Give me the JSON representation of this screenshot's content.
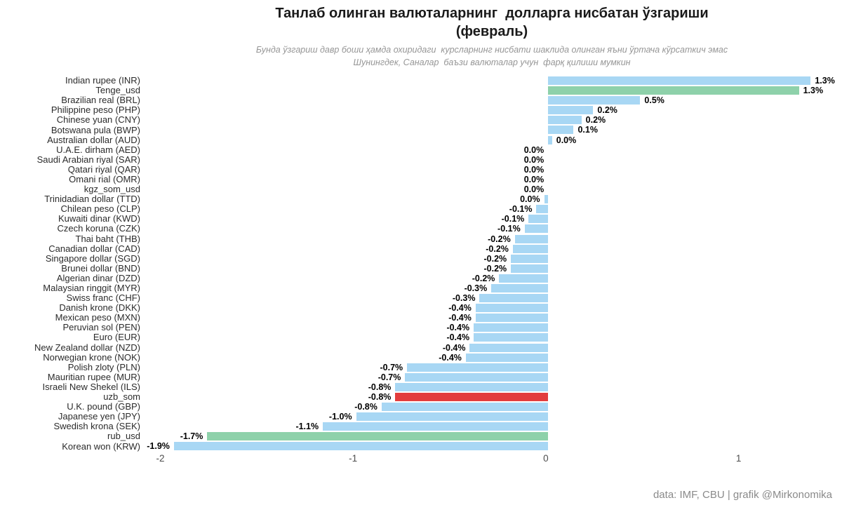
{
  "title": {
    "line1": "Танлаб олинган валюталарнинг  долларга нисбатан ўзгариши",
    "line2": "(февраль)"
  },
  "subtitle": {
    "line1": "Бунда ўзгариш давр боши ҳамда охиридаги  курсларнинг нисбати шаклида олинган яъни ўртача кўрсаткич эмас",
    "line2": "Шунингдек, Саналар  баъзи валюталар учун  фарқ қилиши мумкин"
  },
  "footer": "data: IMF, CBU | grafik @Mirkonomika",
  "chart_data": {
    "type": "bar",
    "orientation": "horizontal",
    "title": "Танлаб олинган валюталарнинг  долларга нисбатан ўзгариши (февраль)",
    "xlabel": "",
    "ylabel": "",
    "grid": false,
    "legend": false,
    "xlim": [
      -2.06,
      1.5
    ],
    "x_ticks": [
      -2,
      -1,
      0,
      1
    ],
    "x_tick_labels": [
      "-2",
      "-1",
      "0",
      "1"
    ],
    "palette": {
      "blue": "#a8d7f4",
      "green": "#8ed1aa",
      "red": "#e23d3d"
    },
    "categories": [
      "Indian rupee (INR)",
      "Tenge_usd",
      "Brazilian real (BRL)",
      "Philippine peso (PHP)",
      "Chinese yuan (CNY)",
      "Botswana pula (BWP)",
      "Australian dollar (AUD)",
      "U.A.E. dirham (AED)",
      "Saudi Arabian riyal (SAR)",
      "Qatari riyal (QAR)",
      "Omani rial (OMR)",
      "kgz_som_usd",
      "Trinidadian dollar (TTD)",
      "Chilean peso (CLP)",
      "Kuwaiti dinar (KWD)",
      "Czech koruna (CZK)",
      "Thai baht (THB)",
      "Canadian dollar (CAD)",
      "Singapore dollar (SGD)",
      "Brunei dollar (BND)",
      "Algerian dinar (DZD)",
      "Malaysian ringgit (MYR)",
      "Swiss franc (CHF)",
      "Danish krone (DKK)",
      "Mexican peso (MXN)",
      "Peruvian sol (PEN)",
      "Euro (EUR)",
      "New Zealand dollar (NZD)",
      "Norwegian krone (NOK)",
      "Polish zloty (PLN)",
      "Mauritian rupee (MUR)",
      "Israeli New Shekel (ILS)",
      "uzb_som",
      "U.K. pound (GBP)",
      "Japanese yen (JPY)",
      "Swedish krona (SEK)",
      "rub_usd",
      "Korean won (KRW)"
    ],
    "values": [
      1.34,
      1.28,
      0.47,
      0.23,
      0.17,
      0.13,
      0.02,
      0.0,
      0.0,
      0.0,
      0.0,
      0.0,
      -0.02,
      -0.06,
      -0.1,
      -0.12,
      -0.17,
      -0.18,
      -0.19,
      -0.19,
      -0.25,
      -0.29,
      -0.35,
      -0.37,
      -0.37,
      -0.38,
      -0.38,
      -0.4,
      -0.42,
      -0.72,
      -0.73,
      -0.78,
      -0.78,
      -0.85,
      -0.98,
      -1.15,
      -1.74,
      -1.91
    ],
    "value_labels": [
      "1.3%",
      "1.3%",
      "0.5%",
      "0.2%",
      "0.2%",
      "0.1%",
      "0.0%",
      "0.0%",
      "0.0%",
      "0.0%",
      "0.0%",
      "0.0%",
      "0.0%",
      "-0.1%",
      "-0.1%",
      "-0.1%",
      "-0.2%",
      "-0.2%",
      "-0.2%",
      "-0.2%",
      "-0.2%",
      "-0.3%",
      "-0.3%",
      "-0.4%",
      "-0.4%",
      "-0.4%",
      "-0.4%",
      "-0.4%",
      "-0.4%",
      "-0.7%",
      "-0.7%",
      "-0.8%",
      "-0.8%",
      "-0.8%",
      "-1.0%",
      "-1.1%",
      "-1.7%",
      "-1.9%"
    ],
    "bar_colors": [
      "blue",
      "green",
      "blue",
      "blue",
      "blue",
      "blue",
      "blue",
      "blue",
      "blue",
      "blue",
      "blue",
      "blue",
      "blue",
      "blue",
      "blue",
      "blue",
      "blue",
      "blue",
      "blue",
      "blue",
      "blue",
      "blue",
      "blue",
      "blue",
      "blue",
      "blue",
      "blue",
      "blue",
      "blue",
      "blue",
      "blue",
      "blue",
      "red",
      "blue",
      "blue",
      "blue",
      "green",
      "blue"
    ]
  }
}
